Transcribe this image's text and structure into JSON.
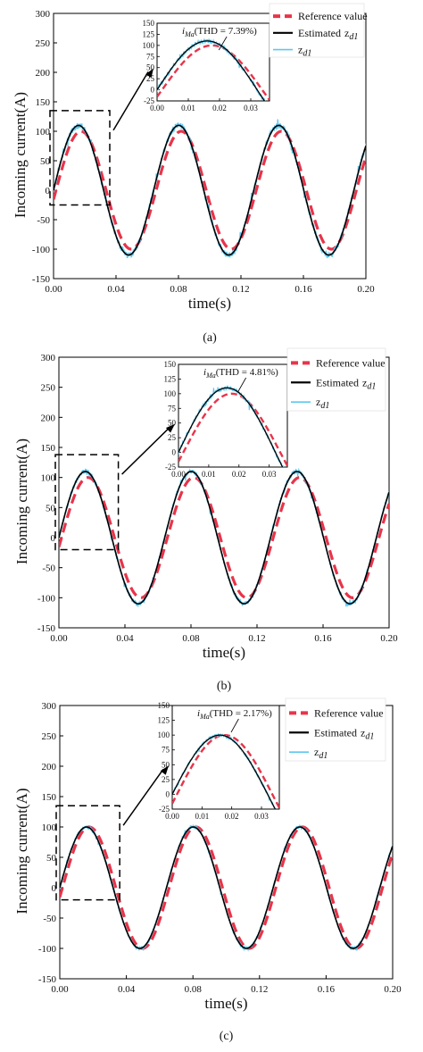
{
  "chart_data": [
    {
      "panel_label": "(a)",
      "type": "line",
      "title": "",
      "xlabel": "time(s)",
      "ylabel": "Incoming current(A)",
      "xlim": [
        0,
        0.2
      ],
      "ylim": [
        -150,
        300
      ],
      "x_ticks": [
        "0.00",
        "0.04",
        "0.08",
        "0.12",
        "0.16",
        "0.20"
      ],
      "y_ticks": [
        "-150",
        "-100",
        "-50",
        "0",
        "50",
        "100",
        "150",
        "200",
        "250",
        "300"
      ],
      "frequency_hz": 15.6,
      "series": [
        {
          "name": "Reference value",
          "color": "#e8344a",
          "style": "dashed",
          "amplitude": 100,
          "phase_lag_s": 0.0016
        },
        {
          "name": "Estimated z_d1",
          "color": "#000000",
          "style": "solid",
          "amplitude": 110,
          "phase_lag_s": 0
        },
        {
          "name": "z_d1",
          "color": "#5bc8ee",
          "style": "solid-noisy",
          "amplitude": 110,
          "phase_lag_s": 0,
          "noise": 5
        }
      ],
      "legend": {
        "position": "top-right",
        "entries": [
          "Reference value",
          "Estimated",
          "z_d1",
          "z_d1"
        ]
      },
      "zoom_box": {
        "xlim": [
          0,
          0.036
        ],
        "ylim": [
          -25,
          135
        ]
      },
      "inset": {
        "annotation": "(THD = 7.39%)",
        "annotation_symbol": "i_Ma",
        "xlim": [
          0,
          0.036
        ],
        "ylim": [
          -25,
          150
        ],
        "x_ticks": [
          "0.00",
          "0.01",
          "0.02",
          "0.03"
        ],
        "y_ticks": [
          "-25",
          "0",
          "25",
          "50",
          "75",
          "100",
          "125",
          "150"
        ]
      }
    },
    {
      "panel_label": "(b)",
      "type": "line",
      "title": "",
      "xlabel": "time(s)",
      "ylabel": "Incoming current(A)",
      "xlim": [
        0,
        0.2
      ],
      "ylim": [
        -150,
        300
      ],
      "x_ticks": [
        "0.00",
        "0.04",
        "0.08",
        "0.12",
        "0.16",
        "0.20"
      ],
      "y_ticks": [
        "-150",
        "-100",
        "-50",
        "0",
        "50",
        "100",
        "150",
        "200",
        "250",
        "300"
      ],
      "frequency_hz": 15.6,
      "series": [
        {
          "name": "Reference value",
          "color": "#e8344a",
          "style": "dashed",
          "amplitude": 100,
          "phase_lag_s": 0.0016
        },
        {
          "name": "Estimated z_d1",
          "color": "#000000",
          "style": "solid",
          "amplitude": 110,
          "phase_lag_s": 0
        },
        {
          "name": "z_d1",
          "color": "#5bc8ee",
          "style": "solid-noisy",
          "amplitude": 110,
          "phase_lag_s": 0,
          "noise": 3.5
        }
      ],
      "legend": {
        "position": "top-right",
        "entries": [
          "Reference value",
          "Estimated",
          "z_d1",
          "z_d1"
        ]
      },
      "zoom_box": {
        "xlim": [
          0,
          0.036
        ],
        "ylim": [
          -20,
          138
        ]
      },
      "inset": {
        "annotation": "(THD = 4.81%)",
        "annotation_symbol": "i_Ma",
        "xlim": [
          0,
          0.036
        ],
        "ylim": [
          -25,
          150
        ],
        "x_ticks": [
          "0.00",
          "0.01",
          "0.02",
          "0.03"
        ],
        "y_ticks": [
          "-25",
          "0",
          "25",
          "50",
          "75",
          "100",
          "125",
          "150"
        ]
      }
    },
    {
      "panel_label": "(c)",
      "type": "line",
      "title": "",
      "xlabel": "time(s)",
      "ylabel": "Incoming current(A)",
      "xlim": [
        0,
        0.2
      ],
      "ylim": [
        -150,
        300
      ],
      "x_ticks": [
        "0.00",
        "0.04",
        "0.08",
        "0.12",
        "0.16",
        "0.20"
      ],
      "y_ticks": [
        "-150",
        "-100",
        "-50",
        "0",
        "50",
        "100",
        "150",
        "200",
        "250",
        "300"
      ],
      "frequency_hz": 15.6,
      "series": [
        {
          "name": "Reference value",
          "color": "#e8344a",
          "style": "dashed",
          "amplitude": 100,
          "phase_lag_s": 0.0016
        },
        {
          "name": "Estimated z_d1",
          "color": "#000000",
          "style": "solid",
          "amplitude": 100,
          "phase_lag_s": 0
        },
        {
          "name": "z_d1",
          "color": "#5bc8ee",
          "style": "solid-noisy",
          "amplitude": 100,
          "phase_lag_s": 0,
          "noise": 2.5
        }
      ],
      "legend": {
        "position": "top-right",
        "entries": [
          "Reference value",
          "Estimated",
          "z_d1",
          "z_d1"
        ]
      },
      "zoom_box": {
        "xlim": [
          0,
          0.036
        ],
        "ylim": [
          -20,
          135
        ]
      },
      "inset": {
        "annotation": "(THD = 2.17%)",
        "annotation_symbol": "i_Ma",
        "xlim": [
          0,
          0.036
        ],
        "ylim": [
          -25,
          150
        ],
        "x_ticks": [
          "0.00",
          "0.01",
          "0.02",
          "0.03"
        ],
        "y_ticks": [
          "-25",
          "0",
          "25",
          "50",
          "75",
          "100",
          "125",
          "150"
        ]
      }
    }
  ]
}
